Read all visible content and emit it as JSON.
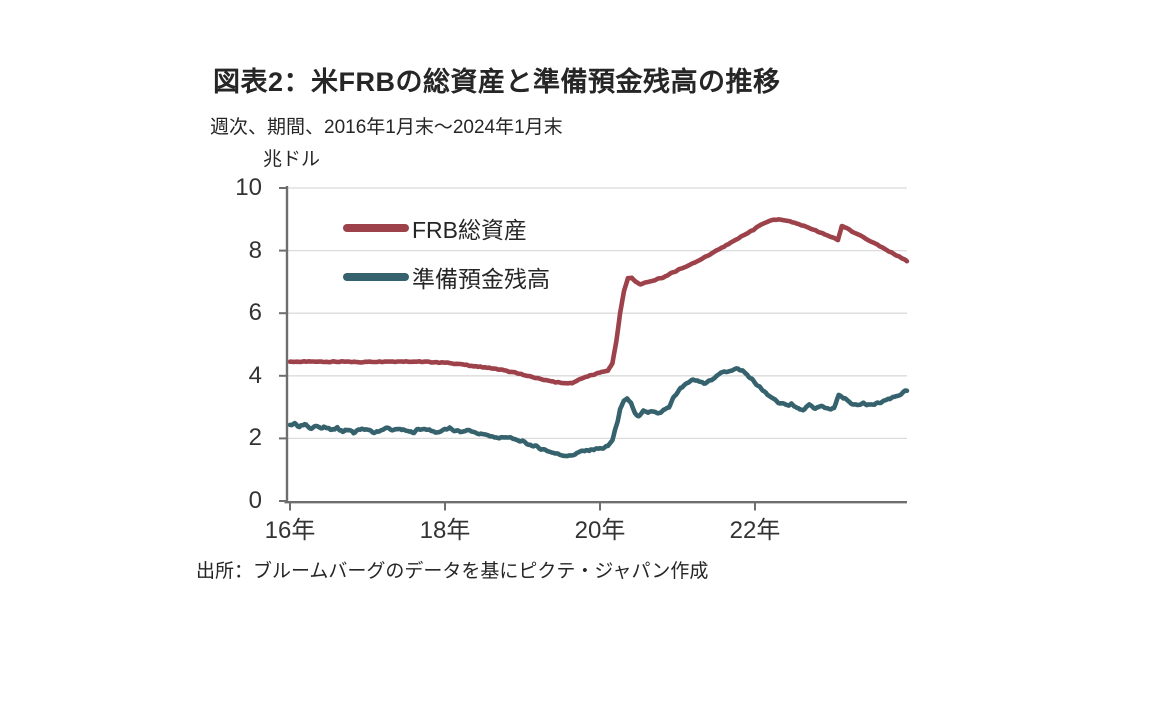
{
  "chart_data": {
    "type": "line",
    "title": "図表2：米FRBの総資産と準備預金残高の推移",
    "subtitle": "週次、期間、2016年1月末～2024年1月末",
    "unit_label": "兆ドル",
    "source": "出所：ブルームバーグのデータを基にピクテ・ジャパン作成",
    "ylim": [
      0,
      10
    ],
    "y_ticks": [
      0,
      2,
      4,
      6,
      8,
      10
    ],
    "x_range": [
      2016.08,
      2024.04
    ],
    "x_ticks": [
      {
        "label": "16年",
        "t": 2016.08
      },
      {
        "label": "18年",
        "t": 2018.08
      },
      {
        "label": "20年",
        "t": 2020.08
      },
      {
        "label": "22年",
        "t": 2022.08
      }
    ],
    "grid": "horizontal-only",
    "legend_position": "inside-top-left",
    "colors": {
      "axis": "#6E6E6E",
      "grid": "#DBDBDB",
      "text": "#262626",
      "tick_text": "#333333"
    },
    "series": [
      {
        "name": "FRB総資産",
        "color": "#9D424A",
        "jitter": 0.018,
        "points": [
          [
            2016.08,
            4.45
          ],
          [
            2016.4,
            4.45
          ],
          [
            2016.7,
            4.45
          ],
          [
            2017.0,
            4.44
          ],
          [
            2017.3,
            4.46
          ],
          [
            2017.6,
            4.46
          ],
          [
            2017.9,
            4.44
          ],
          [
            2018.08,
            4.42
          ],
          [
            2018.25,
            4.38
          ],
          [
            2018.45,
            4.31
          ],
          [
            2018.65,
            4.25
          ],
          [
            2018.85,
            4.17
          ],
          [
            2019.05,
            4.06
          ],
          [
            2019.25,
            3.93
          ],
          [
            2019.45,
            3.82
          ],
          [
            2019.6,
            3.77
          ],
          [
            2019.72,
            3.76
          ],
          [
            2019.82,
            3.9
          ],
          [
            2019.95,
            4.0
          ],
          [
            2020.1,
            4.12
          ],
          [
            2020.18,
            4.16
          ],
          [
            2020.24,
            4.4
          ],
          [
            2020.29,
            5.1
          ],
          [
            2020.34,
            6.0
          ],
          [
            2020.39,
            6.7
          ],
          [
            2020.44,
            7.12
          ],
          [
            2020.49,
            7.13
          ],
          [
            2020.54,
            7.0
          ],
          [
            2020.6,
            6.93
          ],
          [
            2020.68,
            6.98
          ],
          [
            2020.78,
            7.05
          ],
          [
            2020.88,
            7.13
          ],
          [
            2020.98,
            7.25
          ],
          [
            2021.1,
            7.4
          ],
          [
            2021.2,
            7.5
          ],
          [
            2021.3,
            7.62
          ],
          [
            2021.4,
            7.75
          ],
          [
            2021.5,
            7.88
          ],
          [
            2021.6,
            8.02
          ],
          [
            2021.7,
            8.16
          ],
          [
            2021.8,
            8.3
          ],
          [
            2021.9,
            8.44
          ],
          [
            2022.0,
            8.58
          ],
          [
            2022.1,
            8.73
          ],
          [
            2022.2,
            8.88
          ],
          [
            2022.3,
            8.97
          ],
          [
            2022.4,
            8.99
          ],
          [
            2022.5,
            8.94
          ],
          [
            2022.6,
            8.88
          ],
          [
            2022.7,
            8.8
          ],
          [
            2022.8,
            8.7
          ],
          [
            2022.9,
            8.6
          ],
          [
            2023.0,
            8.5
          ],
          [
            2023.08,
            8.42
          ],
          [
            2023.15,
            8.33
          ],
          [
            2023.2,
            8.78
          ],
          [
            2023.26,
            8.72
          ],
          [
            2023.33,
            8.62
          ],
          [
            2023.42,
            8.5
          ],
          [
            2023.52,
            8.37
          ],
          [
            2023.62,
            8.24
          ],
          [
            2023.72,
            8.1
          ],
          [
            2023.82,
            7.96
          ],
          [
            2023.92,
            7.83
          ],
          [
            2024.0,
            7.72
          ],
          [
            2024.04,
            7.66
          ]
        ]
      },
      {
        "name": "準備預金残高",
        "color": "#35626C",
        "jitter": 0.045,
        "points": [
          [
            2016.08,
            2.43
          ],
          [
            2016.14,
            2.48
          ],
          [
            2016.2,
            2.38
          ],
          [
            2016.27,
            2.44
          ],
          [
            2016.34,
            2.33
          ],
          [
            2016.41,
            2.4
          ],
          [
            2016.48,
            2.31
          ],
          [
            2016.55,
            2.37
          ],
          [
            2016.62,
            2.27
          ],
          [
            2016.69,
            2.33
          ],
          [
            2016.76,
            2.21
          ],
          [
            2016.83,
            2.28
          ],
          [
            2016.9,
            2.17
          ],
          [
            2016.97,
            2.26
          ],
          [
            2017.04,
            2.32
          ],
          [
            2017.11,
            2.23
          ],
          [
            2017.18,
            2.18
          ],
          [
            2017.26,
            2.28
          ],
          [
            2017.34,
            2.33
          ],
          [
            2017.42,
            2.25
          ],
          [
            2017.5,
            2.31
          ],
          [
            2017.58,
            2.23
          ],
          [
            2017.66,
            2.19
          ],
          [
            2017.74,
            2.29
          ],
          [
            2017.82,
            2.31
          ],
          [
            2017.9,
            2.24
          ],
          [
            2017.98,
            2.19
          ],
          [
            2018.06,
            2.27
          ],
          [
            2018.14,
            2.31
          ],
          [
            2018.22,
            2.24
          ],
          [
            2018.3,
            2.2
          ],
          [
            2018.38,
            2.27
          ],
          [
            2018.46,
            2.19
          ],
          [
            2018.54,
            2.14
          ],
          [
            2018.62,
            2.1
          ],
          [
            2018.7,
            2.06
          ],
          [
            2018.78,
            2.0
          ],
          [
            2018.86,
            2.06
          ],
          [
            2018.94,
            1.99
          ],
          [
            2019.02,
            1.94
          ],
          [
            2019.1,
            1.87
          ],
          [
            2019.2,
            1.78
          ],
          [
            2019.3,
            1.69
          ],
          [
            2019.4,
            1.61
          ],
          [
            2019.5,
            1.52
          ],
          [
            2019.6,
            1.47
          ],
          [
            2019.7,
            1.44
          ],
          [
            2019.78,
            1.53
          ],
          [
            2019.86,
            1.59
          ],
          [
            2019.94,
            1.63
          ],
          [
            2020.02,
            1.66
          ],
          [
            2020.1,
            1.68
          ],
          [
            2020.18,
            1.74
          ],
          [
            2020.24,
            1.95
          ],
          [
            2020.29,
            2.4
          ],
          [
            2020.34,
            2.9
          ],
          [
            2020.39,
            3.18
          ],
          [
            2020.43,
            3.28
          ],
          [
            2020.48,
            3.12
          ],
          [
            2020.53,
            2.78
          ],
          [
            2020.58,
            2.68
          ],
          [
            2020.64,
            2.88
          ],
          [
            2020.7,
            2.8
          ],
          [
            2020.76,
            2.86
          ],
          [
            2020.83,
            2.8
          ],
          [
            2020.9,
            2.9
          ],
          [
            2020.97,
            3.0
          ],
          [
            2021.04,
            3.35
          ],
          [
            2021.12,
            3.6
          ],
          [
            2021.2,
            3.78
          ],
          [
            2021.28,
            3.85
          ],
          [
            2021.36,
            3.82
          ],
          [
            2021.44,
            3.74
          ],
          [
            2021.52,
            3.9
          ],
          [
            2021.6,
            4.02
          ],
          [
            2021.68,
            4.12
          ],
          [
            2021.76,
            4.18
          ],
          [
            2021.84,
            4.22
          ],
          [
            2021.92,
            4.16
          ],
          [
            2022.0,
            3.98
          ],
          [
            2022.08,
            3.78
          ],
          [
            2022.16,
            3.58
          ],
          [
            2022.24,
            3.38
          ],
          [
            2022.32,
            3.28
          ],
          [
            2022.4,
            3.12
          ],
          [
            2022.48,
            3.05
          ],
          [
            2022.55,
            3.12
          ],
          [
            2022.62,
            2.96
          ],
          [
            2022.7,
            2.9
          ],
          [
            2022.78,
            3.05
          ],
          [
            2022.86,
            2.96
          ],
          [
            2022.94,
            3.02
          ],
          [
            2023.02,
            2.96
          ],
          [
            2023.1,
            2.95
          ],
          [
            2023.16,
            3.38
          ],
          [
            2023.24,
            3.28
          ],
          [
            2023.32,
            3.08
          ],
          [
            2023.4,
            3.06
          ],
          [
            2023.48,
            3.12
          ],
          [
            2023.56,
            3.05
          ],
          [
            2023.64,
            3.1
          ],
          [
            2023.72,
            3.16
          ],
          [
            2023.8,
            3.24
          ],
          [
            2023.88,
            3.32
          ],
          [
            2023.96,
            3.42
          ],
          [
            2024.04,
            3.52
          ]
        ]
      }
    ]
  }
}
